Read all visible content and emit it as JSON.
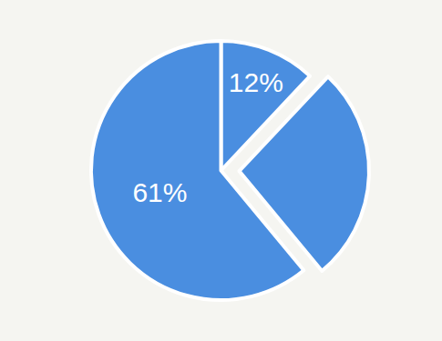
{
  "chart_data": {
    "type": "pie",
    "values": [
      12,
      27,
      61
    ],
    "value_labels": [
      "12%",
      null,
      "61%"
    ],
    "data_labels": true,
    "color": "#4a8ee0"
  }
}
